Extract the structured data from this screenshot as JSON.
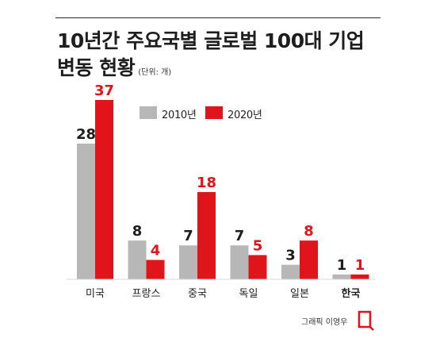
{
  "header": {
    "title_line1": "10년간 주요국별 글로벌 100대 기업",
    "title_line2": "변동 현황",
    "unit": "(단위: 개)"
  },
  "legend": [
    {
      "label": "2010년",
      "color": "#b7b7b7"
    },
    {
      "label": "2020년",
      "color": "#e0151b"
    }
  ],
  "chart_data": {
    "type": "bar",
    "title": "10년간 주요국별 글로벌 100대 기업 변동 현황",
    "unit": "(단위: 개)",
    "categories": [
      "미국",
      "프랑스",
      "중국",
      "독일",
      "일본",
      "한국"
    ],
    "series": [
      {
        "name": "2010년",
        "values": [
          28,
          8,
          7,
          7,
          3,
          1
        ],
        "color": "#b7b7b7",
        "label_color": "#1e1e1e"
      },
      {
        "name": "2020년",
        "values": [
          37,
          4,
          18,
          5,
          8,
          1
        ],
        "color": "#e0151b",
        "label_color": "#e0151b"
      }
    ],
    "ylim": [
      0,
      37
    ],
    "highlight_category": "한국",
    "grid": false,
    "legend_position": "top-center"
  },
  "credit": {
    "text": "그래픽 이영우"
  }
}
